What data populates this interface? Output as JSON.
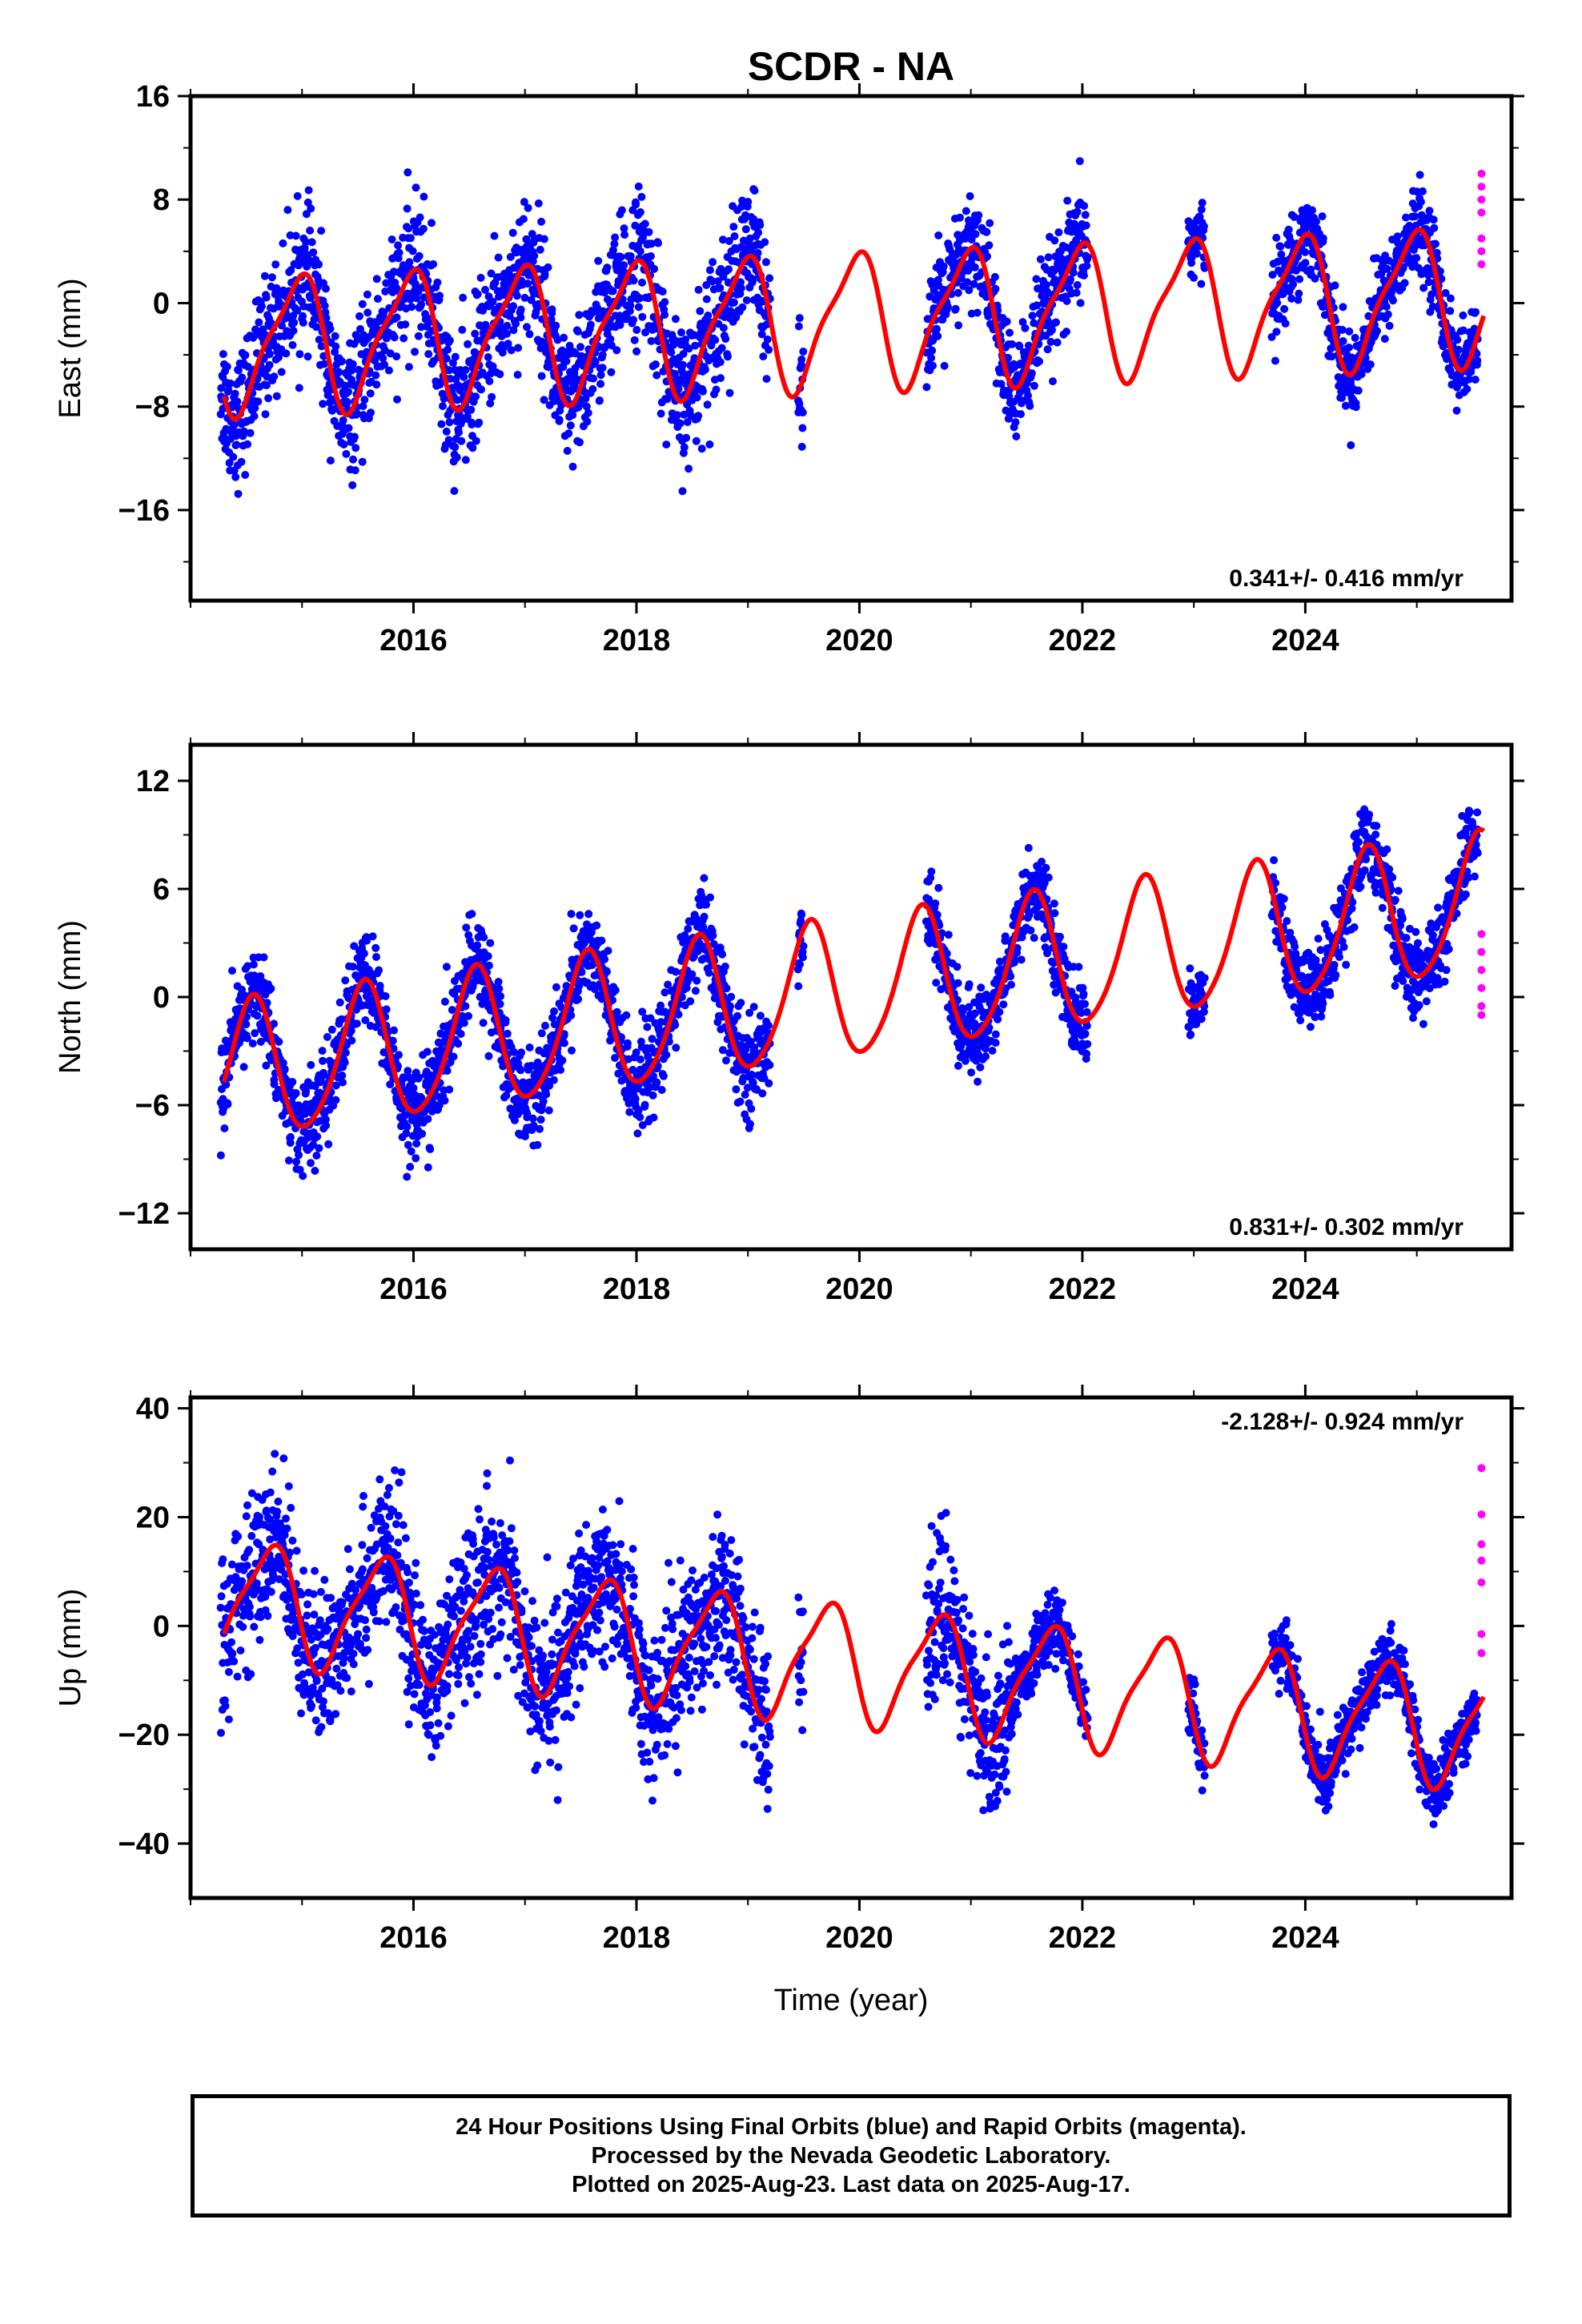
{
  "title": "SCDR - NA",
  "xlabel": "Time (year)",
  "footer": {
    "line1": "24 Hour Positions Using Final Orbits (blue) and Rapid Orbits (magenta).",
    "line2": "Processed by the Nevada Geodetic Laboratory.",
    "line3": "Plotted on 2025-Aug-23. Last data on 2025-Aug-17."
  },
  "colors": {
    "final": "#0000ff",
    "rapid": "#ff00ff",
    "model": "#ff0000",
    "axis": "#000000"
  },
  "chart_data": [
    {
      "type": "scatter",
      "component": "east",
      "ylabel": "East (mm)",
      "xlim": [
        2014.0,
        2025.85
      ],
      "ylim": [
        -23,
        16
      ],
      "yticks": [
        16,
        8,
        0,
        -8,
        -16
      ],
      "xticks": [
        2016,
        2018,
        2020,
        2022,
        2024
      ],
      "rate_text": "0.341+/- 0.416 mm/yr",
      "rate_position": "bottom-right",
      "model": {
        "offset": -3.2,
        "trend": 0.341,
        "annual_amp": 5.0,
        "annual_phase": 2014.95,
        "semi_amp": 1.3,
        "semi_phase": 2015.1,
        "t0": 2014.3
      },
      "series": [
        {
          "name": "Final Orbits (blue)",
          "segments": [
            {
              "start": 2014.27,
              "end": 2015.78,
              "noise": 3.5,
              "gap_every": 0
            },
            {
              "start": 2015.78,
              "end": 2019.2,
              "noise": 3.8,
              "gap_every": 0
            },
            {
              "start": 2019.45,
              "end": 2019.5,
              "noise": 3.0,
              "gap_every": 0
            },
            {
              "start": 2020.6,
              "end": 2022.05,
              "noise": 3.0,
              "gap_every": 0
            },
            {
              "start": 2022.95,
              "end": 2023.1,
              "noise": 2.5,
              "gap_every": 0
            },
            {
              "start": 2023.7,
              "end": 2025.55,
              "noise": 2.3,
              "gap_every": 0
            }
          ]
        },
        {
          "name": "Rapid Orbits (magenta)",
          "points": [
            [
              2025.58,
              10
            ],
            [
              2025.58,
              9
            ],
            [
              2025.58,
              8
            ],
            [
              2025.58,
              7
            ],
            [
              2025.58,
              5
            ],
            [
              2025.58,
              4
            ],
            [
              2025.58,
              3
            ]
          ]
        }
      ]
    },
    {
      "type": "scatter",
      "component": "north",
      "ylabel": "North (mm)",
      "xlim": [
        2014.0,
        2025.85
      ],
      "ylim": [
        -14,
        14
      ],
      "yticks": [
        12,
        6,
        0,
        -6,
        -12
      ],
      "xticks": [
        2016,
        2018,
        2020,
        2022,
        2024
      ],
      "rate_text": "0.831+/- 0.302 mm/yr",
      "rate_position": "bottom-right",
      "model": {
        "offset": -4.3,
        "trend": 0.831,
        "annual_amp": 3.8,
        "annual_phase": 2014.55,
        "semi_amp": 0.5,
        "semi_phase": 2014.6,
        "t0": 2014.3
      },
      "series": [
        {
          "name": "Final Orbits (blue)",
          "segments": [
            {
              "start": 2014.27,
              "end": 2019.2,
              "noise": 1.8,
              "gap_every": 0
            },
            {
              "start": 2019.45,
              "end": 2019.5,
              "noise": 1.5,
              "gap_every": 0
            },
            {
              "start": 2020.6,
              "end": 2022.05,
              "noise": 1.5,
              "gap_every": 0
            },
            {
              "start": 2022.95,
              "end": 2023.1,
              "noise": 1.5,
              "gap_every": 0
            },
            {
              "start": 2023.7,
              "end": 2025.55,
              "noise": 1.6,
              "gap_every": 0
            }
          ]
        },
        {
          "name": "Rapid Orbits (magenta)",
          "points": [
            [
              2025.58,
              3.5
            ],
            [
              2025.58,
              2.5
            ],
            [
              2025.58,
              1.5
            ],
            [
              2025.58,
              0.5
            ],
            [
              2025.58,
              -0.5
            ],
            [
              2025.58,
              -1.0
            ]
          ]
        }
      ]
    },
    {
      "type": "scatter",
      "component": "up",
      "ylabel": "Up (mm)",
      "xlim": [
        2014.0,
        2025.85
      ],
      "ylim": [
        -50,
        42
      ],
      "yticks": [
        40,
        20,
        0,
        -20,
        -40
      ],
      "xticks": [
        2016,
        2018,
        2020,
        2022,
        2024
      ],
      "rate_text": "-2.128+/- 0.924 mm/yr",
      "rate_position": "top-right",
      "model": {
        "offset": 5.0,
        "trend": -2.128,
        "annual_amp": 10.5,
        "annual_phase": 2014.7,
        "semi_amp": 2.5,
        "semi_phase": 2014.85,
        "t0": 2014.3
      },
      "series": [
        {
          "name": "Final Orbits (blue)",
          "segments": [
            {
              "start": 2014.27,
              "end": 2019.2,
              "noise": 10.0,
              "gap_every": 0
            },
            {
              "start": 2019.45,
              "end": 2019.5,
              "noise": 8.0,
              "gap_every": 0
            },
            {
              "start": 2020.6,
              "end": 2021.35,
              "noise": 10.0,
              "gap_every": 0
            },
            {
              "start": 2021.35,
              "end": 2022.05,
              "noise": 4.0,
              "gap_every": 0
            },
            {
              "start": 2022.95,
              "end": 2023.1,
              "noise": 4.0,
              "gap_every": 0
            },
            {
              "start": 2023.7,
              "end": 2025.55,
              "noise": 4.0,
              "gap_every": 0
            }
          ]
        },
        {
          "name": "Rapid Orbits (magenta)",
          "points": [
            [
              2025.58,
              29
            ],
            [
              2025.58,
              20.5
            ],
            [
              2025.58,
              15
            ],
            [
              2025.58,
              12
            ],
            [
              2025.58,
              8
            ],
            [
              2025.58,
              -1.5
            ],
            [
              2025.58,
              -5
            ]
          ]
        }
      ]
    }
  ]
}
